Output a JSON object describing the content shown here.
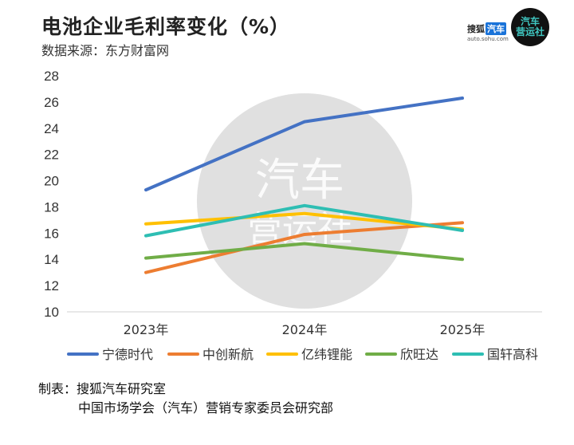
{
  "header": {
    "title": "电池企业毛利率变化（%）",
    "source": "数据来源：东方财富网"
  },
  "logos": {
    "sohu_name": "搜狐",
    "sohu_qiche": "汽车",
    "sohu_url": "auto.sohu.com",
    "brand_line1": "汽车",
    "brand_line2": "营运社"
  },
  "watermark": {
    "line1": "汽车",
    "line2": "营运社"
  },
  "chart_data": {
    "type": "line",
    "title": "电池企业毛利率变化（%）",
    "categories": [
      "2023年",
      "2024年",
      "2025年"
    ],
    "ylim": [
      10,
      28
    ],
    "yticks": [
      10,
      12,
      14,
      16,
      18,
      20,
      22,
      24,
      26,
      28
    ],
    "grid": false,
    "legend_position": "bottom",
    "series": [
      {
        "name": "宁德时代",
        "color": "#4472C4",
        "values": [
          19.3,
          24.5,
          26.3
        ]
      },
      {
        "name": "中创新航",
        "color": "#ED7D31",
        "values": [
          13.0,
          15.9,
          16.8
        ]
      },
      {
        "name": "亿纬锂能",
        "color": "#FFC000",
        "values": [
          16.7,
          17.5,
          16.3
        ]
      },
      {
        "name": "欣旺达",
        "color": "#70AD47",
        "values": [
          14.1,
          15.2,
          14.0
        ]
      },
      {
        "name": "国轩高科",
        "color": "#2EBEB3",
        "values": [
          15.8,
          18.1,
          16.2
        ]
      }
    ]
  },
  "footer": {
    "line1": "制表：搜狐汽车研究室",
    "line2": "中国市场学会（汽车）营销专家委员会研究部"
  }
}
